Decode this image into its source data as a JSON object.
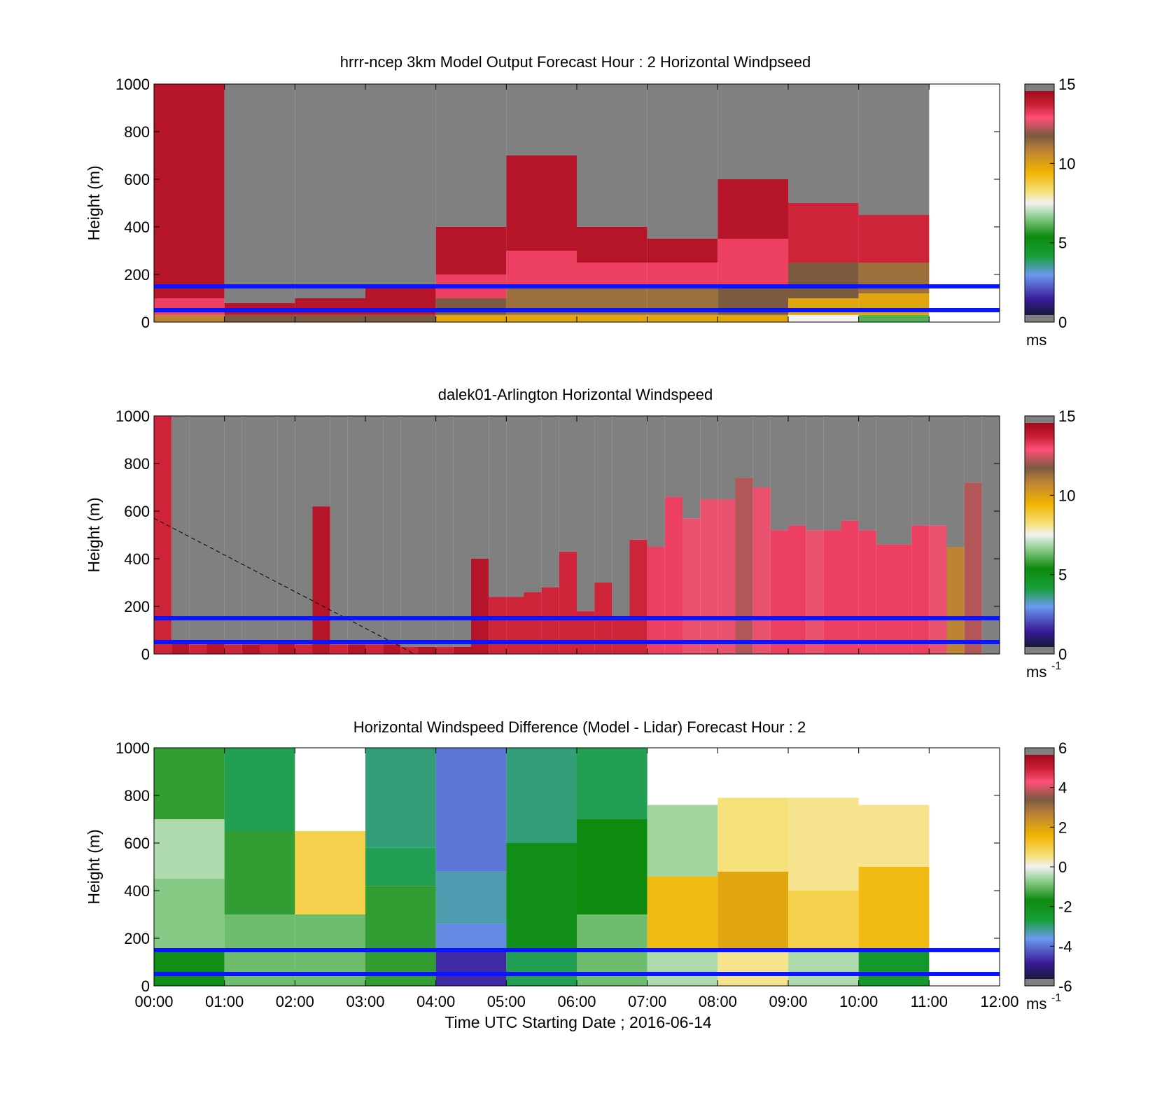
{
  "figure": {
    "xlabel": "Time UTC  Starting Date ; 2016-06-14",
    "x_ticks": [
      "00:00",
      "01:00",
      "02:00",
      "03:00",
      "04:00",
      "05:00",
      "06:00",
      "07:00",
      "08:00",
      "09:00",
      "10:00",
      "11:00",
      "12:00"
    ]
  },
  "chart_data": [
    {
      "type": "heatmap",
      "title": "hrrr-ncep 3km Model Output   Forecast Hour : 2 Horizontal Windpseed",
      "ylabel": "Height (m)",
      "ylim": [
        0,
        1000
      ],
      "xlim_hours": [
        0,
        12
      ],
      "y_ticks": [
        "0",
        "200",
        "400",
        "600",
        "800",
        "1000"
      ],
      "colorbar": {
        "ticks": [
          "0",
          "5",
          "10",
          "15"
        ],
        "range": [
          0,
          15
        ],
        "unit": "ms",
        "unit_sup": ""
      },
      "reference_lines_m": [
        50,
        150
      ],
      "columns": [
        {
          "start_hour": 0,
          "top_m": 1000,
          "levels": [
            {
              "top_m": 30,
              "value": 11
            },
            {
              "top_m": 100,
              "value": 13.5
            },
            {
              "top_m": 1000,
              "value": 14.5
            }
          ]
        },
        {
          "start_hour": 1,
          "top_m": 80,
          "levels": [
            {
              "top_m": 30,
              "value": 12
            },
            {
              "top_m": 80,
              "value": 14.5
            }
          ]
        },
        {
          "start_hour": 2,
          "top_m": 100,
          "levels": [
            {
              "top_m": 30,
              "value": 12
            },
            {
              "top_m": 100,
              "value": 14.5
            }
          ]
        },
        {
          "start_hour": 3,
          "top_m": 150,
          "levels": [
            {
              "top_m": 30,
              "value": 12
            },
            {
              "top_m": 150,
              "value": 14.5
            }
          ]
        },
        {
          "start_hour": 4,
          "top_m": 400,
          "levels": [
            {
              "top_m": 30,
              "value": 10
            },
            {
              "top_m": 100,
              "value": 12
            },
            {
              "top_m": 200,
              "value": 13.5
            },
            {
              "top_m": 400,
              "value": 14.5
            }
          ]
        },
        {
          "start_hour": 5,
          "top_m": 700,
          "levels": [
            {
              "top_m": 30,
              "value": 10
            },
            {
              "top_m": 150,
              "value": 11.5
            },
            {
              "top_m": 300,
              "value": 13.5
            },
            {
              "top_m": 700,
              "value": 14.5
            }
          ]
        },
        {
          "start_hour": 6,
          "top_m": 400,
          "levels": [
            {
              "top_m": 30,
              "value": 10
            },
            {
              "top_m": 150,
              "value": 11.5
            },
            {
              "top_m": 250,
              "value": 13.5
            },
            {
              "top_m": 400,
              "value": 14.5
            }
          ]
        },
        {
          "start_hour": 7,
          "top_m": 350,
          "levels": [
            {
              "top_m": 30,
              "value": 10
            },
            {
              "top_m": 150,
              "value": 11.5
            },
            {
              "top_m": 250,
              "value": 13.5
            },
            {
              "top_m": 350,
              "value": 14.5
            }
          ]
        },
        {
          "start_hour": 8,
          "top_m": 600,
          "levels": [
            {
              "top_m": 30,
              "value": 10
            },
            {
              "top_m": 150,
              "value": 12
            },
            {
              "top_m": 350,
              "value": 13.5
            },
            {
              "top_m": 600,
              "value": 14.5
            }
          ]
        },
        {
          "start_hour": 9,
          "top_m": 500,
          "levels": [
            {
              "top_m": 30,
              "value": 7.5
            },
            {
              "top_m": 100,
              "value": 10
            },
            {
              "top_m": 250,
              "value": 12
            },
            {
              "top_m": 500,
              "value": 14
            }
          ]
        },
        {
          "start_hour": 10,
          "top_m": 450,
          "levels": [
            {
              "top_m": 30,
              "value": 6
            },
            {
              "top_m": 120,
              "value": 10
            },
            {
              "top_m": 250,
              "value": 11.5
            },
            {
              "top_m": 450,
              "value": 14
            }
          ]
        },
        {
          "start_hour": 11,
          "top_m": 1000,
          "levels": []
        }
      ]
    },
    {
      "type": "heatmap",
      "title": "dalek01-Arlington  Horizontal Windspeed",
      "ylabel": "Height (m)",
      "ylim": [
        0,
        1000
      ],
      "xlim_hours": [
        0,
        12
      ],
      "y_ticks": [
        "0",
        "200",
        "400",
        "600",
        "800",
        "1000"
      ],
      "colorbar": {
        "ticks": [
          "0",
          "5",
          "10",
          "15"
        ],
        "range": [
          0,
          15
        ],
        "unit": "ms",
        "unit_sup": "-1"
      },
      "reference_lines_m": [
        50,
        150
      ],
      "dashed_line": [
        {
          "hour": 0,
          "m": 570
        },
        {
          "hour": 3.7,
          "m": 0
        }
      ],
      "columns": [
        {
          "start_hour": 0.0,
          "top_m": 1000,
          "value": 14
        },
        {
          "start_hour": 0.25,
          "top_m": 50,
          "value": 14.5
        },
        {
          "start_hour": 0.5,
          "top_m": 40,
          "value": 14
        },
        {
          "start_hour": 0.75,
          "top_m": 50,
          "value": 14.5
        },
        {
          "start_hour": 1.0,
          "top_m": 40,
          "value": 14
        },
        {
          "start_hour": 1.25,
          "top_m": 40,
          "value": 14.5
        },
        {
          "start_hour": 1.5,
          "top_m": 50,
          "value": 14
        },
        {
          "start_hour": 1.75,
          "top_m": 50,
          "value": 14.5
        },
        {
          "start_hour": 2.0,
          "top_m": 40,
          "value": 14
        },
        {
          "start_hour": 2.25,
          "top_m": 620,
          "value": 14.5
        },
        {
          "start_hour": 2.5,
          "top_m": 40,
          "value": 14
        },
        {
          "start_hour": 2.75,
          "top_m": 40,
          "value": 14.5
        },
        {
          "start_hour": 3.0,
          "top_m": 40,
          "value": 14
        },
        {
          "start_hour": 3.25,
          "top_m": 40,
          "value": 14.5
        },
        {
          "start_hour": 3.5,
          "top_m": 30,
          "value": 14
        },
        {
          "start_hour": 3.75,
          "top_m": 30,
          "value": 14.5
        },
        {
          "start_hour": 4.0,
          "top_m": 30,
          "value": 14
        },
        {
          "start_hour": 4.25,
          "top_m": 30,
          "value": 14.5
        },
        {
          "start_hour": 4.5,
          "top_m": 400,
          "value": 14.5
        },
        {
          "start_hour": 4.75,
          "top_m": 240,
          "value": 14
        },
        {
          "start_hour": 5.0,
          "top_m": 240,
          "value": 14
        },
        {
          "start_hour": 5.25,
          "top_m": 260,
          "value": 14
        },
        {
          "start_hour": 5.5,
          "top_m": 280,
          "value": 14
        },
        {
          "start_hour": 5.75,
          "top_m": 430,
          "value": 14
        },
        {
          "start_hour": 6.0,
          "top_m": 180,
          "value": 14
        },
        {
          "start_hour": 6.25,
          "top_m": 300,
          "value": 14
        },
        {
          "start_hour": 6.5,
          "top_m": 150,
          "value": 14
        },
        {
          "start_hour": 6.75,
          "top_m": 480,
          "value": 14
        },
        {
          "start_hour": 7.0,
          "top_m": 450,
          "value": 13.5
        },
        {
          "start_hour": 7.25,
          "top_m": 660,
          "value": 13.5
        },
        {
          "start_hour": 7.5,
          "top_m": 570,
          "value": 13
        },
        {
          "start_hour": 7.75,
          "top_m": 650,
          "value": 13
        },
        {
          "start_hour": 8.0,
          "top_m": 650,
          "value": 13
        },
        {
          "start_hour": 8.25,
          "top_m": 740,
          "value": 12.5
        },
        {
          "start_hour": 8.5,
          "top_m": 700,
          "value": 13
        },
        {
          "start_hour": 8.75,
          "top_m": 520,
          "value": 13.5
        },
        {
          "start_hour": 9.0,
          "top_m": 540,
          "value": 13.5
        },
        {
          "start_hour": 9.25,
          "top_m": 520,
          "value": 13
        },
        {
          "start_hour": 9.5,
          "top_m": 520,
          "value": 13.5
        },
        {
          "start_hour": 9.75,
          "top_m": 560,
          "value": 13.5
        },
        {
          "start_hour": 10.0,
          "top_m": 520,
          "value": 13.5
        },
        {
          "start_hour": 10.25,
          "top_m": 460,
          "value": 13.5
        },
        {
          "start_hour": 10.5,
          "top_m": 460,
          "value": 13.5
        },
        {
          "start_hour": 10.75,
          "top_m": 540,
          "value": 13.5
        },
        {
          "start_hour": 11.0,
          "top_m": 540,
          "value": 13
        },
        {
          "start_hour": 11.25,
          "top_m": 450,
          "value": 11
        },
        {
          "start_hour": 11.5,
          "top_m": 720,
          "value": 12.5
        },
        {
          "start_hour": 11.75,
          "top_m": 0,
          "value": 0
        }
      ]
    },
    {
      "type": "heatmap",
      "title": "Horizontal Windspeed Difference (Model - Lidar) Forecast Hour : 2",
      "ylabel": "Height (m)",
      "ylim": [
        0,
        1000
      ],
      "xlim_hours": [
        0,
        12
      ],
      "y_ticks": [
        "0",
        "200",
        "400",
        "600",
        "800",
        "1000"
      ],
      "colorbar": {
        "ticks": [
          "-6",
          "-4",
          "-2",
          "0",
          "2",
          "4",
          "6"
        ],
        "range": [
          -6,
          6
        ],
        "unit": "ms",
        "unit_sup": "-1"
      },
      "reference_lines_m": [
        50,
        150
      ],
      "columns": [
        {
          "start_hour": 0,
          "top_m": 1000,
          "levels": [
            {
              "top_m": 150,
              "value": -2
            },
            {
              "top_m": 450,
              "value": -0.8
            },
            {
              "top_m": 700,
              "value": -0.5
            },
            {
              "top_m": 1000,
              "value": -1.5
            }
          ]
        },
        {
          "start_hour": 1,
          "top_m": 1000,
          "levels": [
            {
              "top_m": 300,
              "value": -1
            },
            {
              "top_m": 650,
              "value": -1.5
            },
            {
              "top_m": 1000,
              "value": -3
            }
          ]
        },
        {
          "start_hour": 2,
          "top_m": 650,
          "levels": [
            {
              "top_m": 300,
              "value": -1
            },
            {
              "top_m": 650,
              "value": 1
            }
          ]
        },
        {
          "start_hour": 3,
          "top_m": 1000,
          "levels": [
            {
              "top_m": 420,
              "value": -1.5
            },
            {
              "top_m": 580,
              "value": -3
            },
            {
              "top_m": 1000,
              "value": -3.2
            }
          ]
        },
        {
          "start_hour": 4,
          "top_m": 1000,
          "levels": [
            {
              "top_m": 150,
              "value": -5
            },
            {
              "top_m": 260,
              "value": -4
            },
            {
              "top_m": 480,
              "value": -3.5
            },
            {
              "top_m": 1000,
              "value": -4.2
            }
          ]
        },
        {
          "start_hour": 5,
          "top_m": 1000,
          "levels": [
            {
              "top_m": 150,
              "value": -3
            },
            {
              "top_m": 600,
              "value": -2
            },
            {
              "top_m": 1000,
              "value": -3.2
            }
          ]
        },
        {
          "start_hour": 6,
          "top_m": 1000,
          "levels": [
            {
              "top_m": 300,
              "value": -1
            },
            {
              "top_m": 700,
              "value": -1.8
            },
            {
              "top_m": 1000,
              "value": -3
            }
          ]
        },
        {
          "start_hour": 7,
          "top_m": 760,
          "levels": [
            {
              "top_m": 150,
              "value": -0.5
            },
            {
              "top_m": 460,
              "value": 1.5
            },
            {
              "top_m": 760,
              "value": -0.6
            }
          ]
        },
        {
          "start_hour": 8,
          "top_m": 790,
          "levels": [
            {
              "top_m": 150,
              "value": 0.5
            },
            {
              "top_m": 480,
              "value": 2
            },
            {
              "top_m": 790,
              "value": 0.6
            }
          ]
        },
        {
          "start_hour": 9,
          "top_m": 790,
          "levels": [
            {
              "top_m": 150,
              "value": -0.5
            },
            {
              "top_m": 400,
              "value": 1
            },
            {
              "top_m": 790,
              "value": 0.5
            }
          ]
        },
        {
          "start_hour": 10,
          "top_m": 760,
          "levels": [
            {
              "top_m": 150,
              "value": -2.5
            },
            {
              "top_m": 500,
              "value": 1.5
            },
            {
              "top_m": 760,
              "value": 0.5
            }
          ]
        },
        {
          "start_hour": 11,
          "top_m": 0,
          "levels": []
        }
      ]
    }
  ]
}
